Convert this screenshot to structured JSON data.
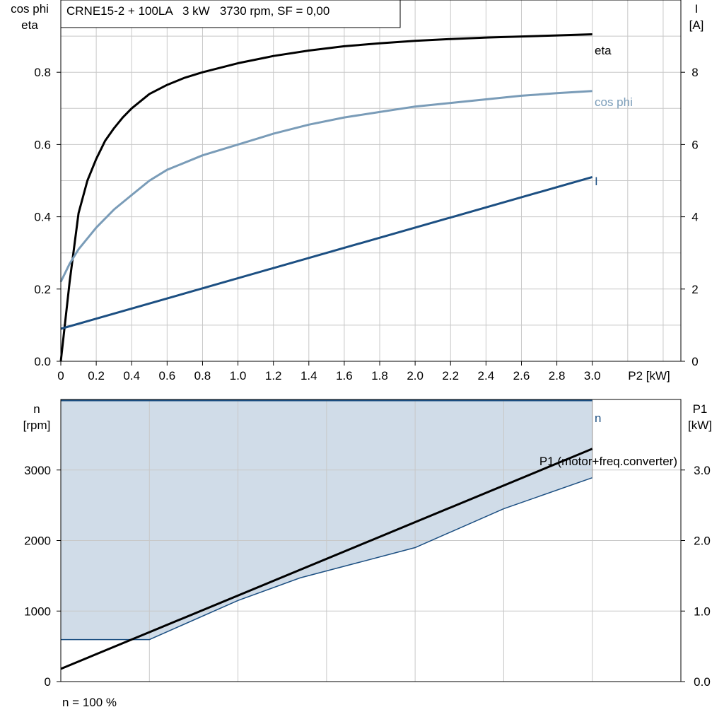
{
  "header": {
    "title": "CRNE15-2 + 100LA   3 kW   3730 rpm, SF = 0,00"
  },
  "footer": {
    "note": "n = 100 %"
  },
  "colors": {
    "eta": "#000000",
    "cos_phi": "#7a9cb8",
    "current": "#1c4f82",
    "speed": "#1c4f82",
    "p1": "#000000",
    "fill": "#d0dce8",
    "grid": "#c8c8c8"
  },
  "chart_data": [
    {
      "type": "line",
      "x_label": "P2 [kW]",
      "x_ticks": [
        "0",
        "0.2",
        "0.4",
        "0.6",
        "0.8",
        "1.0",
        "1.2",
        "1.4",
        "1.6",
        "1.8",
        "2.0",
        "2.2",
        "2.4",
        "2.6",
        "2.8",
        "3.0"
      ],
      "xlim": [
        0,
        3.5
      ],
      "y_left_label": [
        "cos phi",
        "eta"
      ],
      "y_left_ticks": [
        "0.0",
        "0.2",
        "0.4",
        "0.6",
        "0.8"
      ],
      "ylim_left": [
        0,
        1.0
      ],
      "y_right_label": [
        "I",
        "[A]"
      ],
      "y_right_ticks": [
        "0",
        "2",
        "4",
        "6",
        "8"
      ],
      "ylim_right": [
        0,
        10
      ],
      "grid": true,
      "series": [
        {
          "name": "eta",
          "axis": "left",
          "x": [
            0,
            0.05,
            0.1,
            0.15,
            0.2,
            0.25,
            0.3,
            0.35,
            0.4,
            0.5,
            0.6,
            0.7,
            0.8,
            1.0,
            1.2,
            1.4,
            1.6,
            1.8,
            2.0,
            2.2,
            2.4,
            2.6,
            2.8,
            3.0
          ],
          "y": [
            0,
            0.22,
            0.41,
            0.5,
            0.56,
            0.61,
            0.645,
            0.675,
            0.7,
            0.74,
            0.765,
            0.785,
            0.8,
            0.825,
            0.845,
            0.86,
            0.872,
            0.88,
            0.887,
            0.892,
            0.896,
            0.899,
            0.902,
            0.905
          ]
        },
        {
          "name": "cos phi",
          "axis": "left",
          "x": [
            0,
            0.05,
            0.1,
            0.2,
            0.3,
            0.4,
            0.5,
            0.6,
            0.8,
            1.0,
            1.2,
            1.4,
            1.6,
            1.8,
            2.0,
            2.2,
            2.4,
            2.6,
            2.8,
            3.0
          ],
          "y": [
            0.22,
            0.27,
            0.31,
            0.37,
            0.42,
            0.46,
            0.5,
            0.53,
            0.57,
            0.6,
            0.63,
            0.655,
            0.675,
            0.69,
            0.705,
            0.715,
            0.725,
            0.735,
            0.742,
            0.748
          ]
        },
        {
          "name": "I",
          "axis": "right",
          "x": [
            0,
            3.0
          ],
          "y": [
            0.9,
            5.1
          ]
        }
      ]
    },
    {
      "type": "line",
      "x_label": "",
      "xlim": [
        0,
        3.5
      ],
      "y_left_label": [
        "n",
        "[rpm]"
      ],
      "y_left_ticks": [
        "0",
        "1000",
        "2000",
        "3000"
      ],
      "ylim_left": [
        0,
        4000
      ],
      "y_right_label": [
        "P1",
        "[kW]"
      ],
      "y_right_ticks": [
        "0.0",
        "1.0",
        "2.0",
        "3.0"
      ],
      "ylim_right": [
        0,
        4.0
      ],
      "grid": true,
      "series": [
        {
          "name": "n",
          "axis": "left",
          "x": [
            0,
            3.0
          ],
          "y": [
            3990,
            3990
          ]
        },
        {
          "name": "P1 (motor+freq.converter)",
          "axis": "right",
          "x": [
            0,
            3.0
          ],
          "y": [
            0.18,
            3.3
          ]
        },
        {
          "name": "",
          "axis": "left",
          "x": [
            0,
            0.5,
            1.0,
            1.35,
            2.0,
            2.5,
            3.0
          ],
          "y": [
            595,
            595,
            1150,
            1470,
            1900,
            2450,
            2890
          ]
        }
      ]
    }
  ]
}
